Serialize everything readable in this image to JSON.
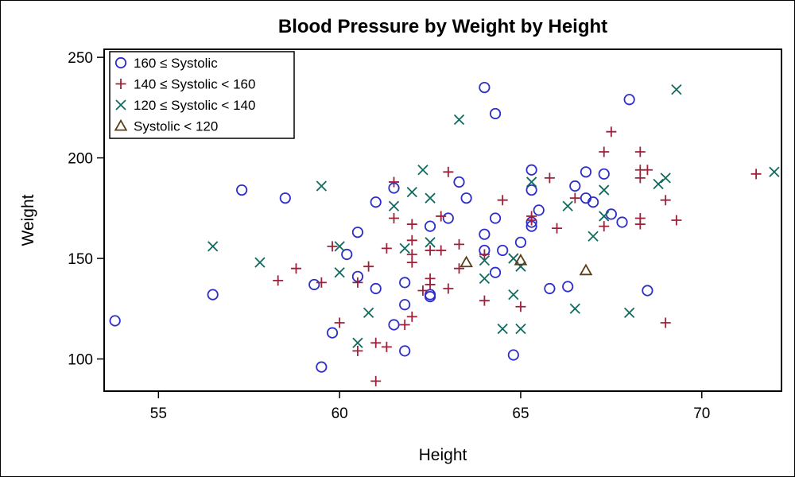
{
  "chart_data": {
    "type": "scatter",
    "title": "Blood Pressure by Weight by Height",
    "xlabel": "Height",
    "ylabel": "Weight",
    "xlim": [
      53.5,
      72.2
    ],
    "ylim": [
      84,
      254
    ],
    "xticks": [
      55,
      60,
      65,
      70
    ],
    "yticks": [
      100,
      150,
      200,
      250
    ],
    "grid": false,
    "legend_position": "top-left",
    "series": [
      {
        "name": "160 ≤ Systolic",
        "marker": "circle",
        "color": "#2E2EC8",
        "points": [
          [
            53.8,
            119
          ],
          [
            56.5,
            132
          ],
          [
            57.3,
            184
          ],
          [
            58.5,
            180
          ],
          [
            59.3,
            137
          ],
          [
            59.5,
            96
          ],
          [
            59.8,
            113
          ],
          [
            60.2,
            152
          ],
          [
            60.5,
            141
          ],
          [
            60.5,
            163
          ],
          [
            61.0,
            135
          ],
          [
            61.0,
            178
          ],
          [
            61.5,
            117
          ],
          [
            61.5,
            185
          ],
          [
            61.8,
            104
          ],
          [
            61.8,
            127
          ],
          [
            61.8,
            138
          ],
          [
            62.5,
            131
          ],
          [
            62.5,
            132
          ],
          [
            62.5,
            166
          ],
          [
            63.0,
            170
          ],
          [
            63.3,
            188
          ],
          [
            63.5,
            180
          ],
          [
            64.0,
            235
          ],
          [
            64.0,
            162
          ],
          [
            64.0,
            154
          ],
          [
            64.3,
            222
          ],
          [
            64.3,
            170
          ],
          [
            64.3,
            143
          ],
          [
            64.5,
            154
          ],
          [
            64.8,
            102
          ],
          [
            65.0,
            158
          ],
          [
            65.3,
            194
          ],
          [
            65.3,
            184
          ],
          [
            65.3,
            168
          ],
          [
            65.3,
            166
          ],
          [
            65.5,
            174
          ],
          [
            65.8,
            135
          ],
          [
            66.3,
            136
          ],
          [
            66.5,
            186
          ],
          [
            66.8,
            193
          ],
          [
            66.8,
            180
          ],
          [
            67.0,
            178
          ],
          [
            67.3,
            192
          ],
          [
            67.5,
            172
          ],
          [
            67.8,
            168
          ],
          [
            68.0,
            229
          ],
          [
            68.5,
            134
          ]
        ]
      },
      {
        "name": "140 ≤ Systolic < 160",
        "marker": "plus",
        "color": "#A0203A",
        "points": [
          [
            58.3,
            139
          ],
          [
            58.8,
            145
          ],
          [
            59.5,
            138
          ],
          [
            59.8,
            156
          ],
          [
            60.0,
            118
          ],
          [
            60.5,
            138
          ],
          [
            60.5,
            104
          ],
          [
            60.8,
            146
          ],
          [
            61.0,
            89
          ],
          [
            61.0,
            108
          ],
          [
            61.3,
            106
          ],
          [
            61.3,
            155
          ],
          [
            61.5,
            170
          ],
          [
            61.5,
            188
          ],
          [
            61.8,
            117
          ],
          [
            62.0,
            167
          ],
          [
            62.0,
            148
          ],
          [
            62.0,
            159
          ],
          [
            62.0,
            152
          ],
          [
            62.0,
            121
          ],
          [
            62.3,
            134
          ],
          [
            62.5,
            140
          ],
          [
            62.5,
            137
          ],
          [
            62.5,
            154
          ],
          [
            62.8,
            171
          ],
          [
            62.8,
            154
          ],
          [
            63.0,
            135
          ],
          [
            63.0,
            193
          ],
          [
            63.3,
            157
          ],
          [
            63.3,
            145
          ],
          [
            64.0,
            129
          ],
          [
            64.0,
            152
          ],
          [
            64.5,
            179
          ],
          [
            65.0,
            126
          ],
          [
            65.3,
            171
          ],
          [
            65.3,
            169
          ],
          [
            65.8,
            190
          ],
          [
            66.0,
            165
          ],
          [
            66.5,
            180
          ],
          [
            67.3,
            203
          ],
          [
            67.3,
            166
          ],
          [
            67.5,
            213
          ],
          [
            68.3,
            203
          ],
          [
            68.3,
            194
          ],
          [
            68.3,
            190
          ],
          [
            68.3,
            170
          ],
          [
            68.3,
            167
          ],
          [
            68.5,
            194
          ],
          [
            69.0,
            179
          ],
          [
            69.0,
            118
          ],
          [
            69.3,
            169
          ],
          [
            71.5,
            192
          ]
        ]
      },
      {
        "name": "120 ≤ Systolic < 140",
        "marker": "x",
        "color": "#116A5E",
        "points": [
          [
            56.5,
            156
          ],
          [
            57.8,
            148
          ],
          [
            59.5,
            186
          ],
          [
            60.0,
            143
          ],
          [
            60.0,
            156
          ],
          [
            60.5,
            108
          ],
          [
            60.8,
            123
          ],
          [
            61.5,
            176
          ],
          [
            61.8,
            155
          ],
          [
            62.0,
            183
          ],
          [
            62.3,
            194
          ],
          [
            62.5,
            180
          ],
          [
            62.5,
            158
          ],
          [
            63.3,
            219
          ],
          [
            64.0,
            149
          ],
          [
            64.0,
            140
          ],
          [
            64.5,
            115
          ],
          [
            64.8,
            150
          ],
          [
            64.8,
            132
          ],
          [
            65.0,
            115
          ],
          [
            65.0,
            146
          ],
          [
            65.3,
            188
          ],
          [
            66.3,
            176
          ],
          [
            66.5,
            125
          ],
          [
            67.0,
            161
          ],
          [
            67.3,
            171
          ],
          [
            67.3,
            184
          ],
          [
            68.0,
            123
          ],
          [
            68.8,
            187
          ],
          [
            69.0,
            190
          ],
          [
            69.3,
            234
          ],
          [
            72.0,
            193
          ]
        ]
      },
      {
        "name": "Systolic < 120",
        "marker": "triangle",
        "color": "#5A3E16",
        "points": [
          [
            63.5,
            148
          ],
          [
            65.0,
            149
          ],
          [
            66.8,
            144
          ]
        ]
      }
    ]
  }
}
